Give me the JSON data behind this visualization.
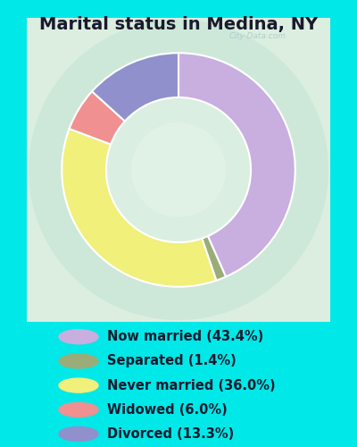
{
  "title": "Marital status in Medina, NY",
  "slices": [
    {
      "label": "Now married (43.4%)",
      "value": 43.4,
      "color": "#c9aee0"
    },
    {
      "label": "Separated (1.4%)",
      "value": 1.4,
      "color": "#9aad78"
    },
    {
      "label": "Never married (36.0%)",
      "value": 36.0,
      "color": "#f0f07a"
    },
    {
      "label": "Widowed (6.0%)",
      "value": 6.0,
      "color": "#f09090"
    },
    {
      "label": "Divorced (13.3%)",
      "value": 13.3,
      "color": "#9090cc"
    }
  ],
  "title_fontsize": 14,
  "title_color": "#1a1a2e",
  "legend_fontsize": 10.5,
  "bg_outer": "#00e8e8",
  "bg_inner_center": "#e8f5e8",
  "bg_inner_edge": "#c8e8d8",
  "watermark": "City-Data.com",
  "donut_width": 0.38,
  "startangle": 90
}
